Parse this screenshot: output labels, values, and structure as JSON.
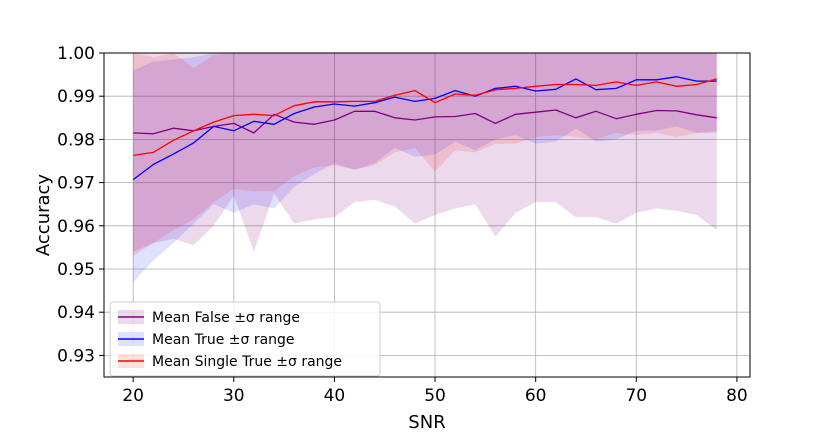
{
  "chart_data": {
    "type": "line",
    "xlabel": "SNR",
    "ylabel": "Accuracy",
    "xlim": [
      17.1,
      81.3
    ],
    "ylim": [
      0.925,
      1.0
    ],
    "xticks": [
      20,
      30,
      40,
      50,
      60,
      70,
      80
    ],
    "xtick_labels": [
      "20",
      "30",
      "40",
      "50",
      "60",
      "70",
      "80"
    ],
    "yticks": [
      0.93,
      0.94,
      0.95,
      0.96,
      0.97,
      0.98,
      0.99,
      1.0
    ],
    "ytick_labels": [
      "0.93",
      "0.94",
      "0.95",
      "0.96",
      "0.97",
      "0.98",
      "0.99",
      "1.00"
    ],
    "grid": true,
    "legend_position": "lower-left",
    "x": [
      20,
      22,
      24,
      26,
      28,
      30,
      32,
      34,
      36,
      38,
      40,
      42,
      44,
      46,
      48,
      50,
      52,
      54,
      56,
      58,
      60,
      62,
      64,
      66,
      68,
      70,
      72,
      74,
      76,
      78
    ],
    "series": [
      {
        "name": "Mean False ±σ range",
        "color": "#800080",
        "band_color": "#800080",
        "band_opacity": 0.15,
        "values": [
          0.9815,
          0.9813,
          0.9826,
          0.982,
          0.983,
          0.9837,
          0.9815,
          0.9858,
          0.984,
          0.9835,
          0.9845,
          0.9865,
          0.9865,
          0.985,
          0.9845,
          0.9852,
          0.9853,
          0.986,
          0.9837,
          0.9858,
          0.9863,
          0.9868,
          0.985,
          0.9865,
          0.9848,
          0.9858,
          0.9867,
          0.9866,
          0.9857,
          0.985
        ],
        "lower": [
          0.954,
          0.956,
          0.957,
          0.9555,
          0.96,
          0.967,
          0.954,
          0.9675,
          0.9605,
          0.9615,
          0.962,
          0.9655,
          0.966,
          0.9645,
          0.9605,
          0.9625,
          0.964,
          0.965,
          0.9575,
          0.963,
          0.9655,
          0.9655,
          0.962,
          0.962,
          0.9605,
          0.963,
          0.964,
          0.9635,
          0.9625,
          0.959
        ],
        "upper": [
          1.0,
          1.0,
          1.0,
          1.0,
          1.0,
          1.0,
          1.0,
          1.0,
          1.0,
          1.0,
          1.0,
          1.0,
          1.0,
          1.0,
          1.0,
          1.0,
          1.0,
          1.0,
          1.0,
          1.0,
          1.0,
          1.0,
          1.0,
          1.0,
          1.0,
          1.0,
          1.0,
          1.0,
          1.0,
          1.0
        ]
      },
      {
        "name": "Mean True ±σ range",
        "color": "#0000ff",
        "band_color": "#0000ff",
        "band_opacity": 0.12,
        "values": [
          0.9707,
          0.9742,
          0.9766,
          0.9792,
          0.983,
          0.982,
          0.9842,
          0.9835,
          0.986,
          0.9875,
          0.9882,
          0.9877,
          0.9885,
          0.9898,
          0.9888,
          0.9895,
          0.9913,
          0.99,
          0.9918,
          0.9923,
          0.9912,
          0.9916,
          0.994,
          0.9915,
          0.9918,
          0.9938,
          0.9938,
          0.9945,
          0.9935,
          0.9935
        ],
        "lower": [
          0.947,
          0.952,
          0.956,
          0.9605,
          0.965,
          0.963,
          0.965,
          0.964,
          0.969,
          0.972,
          0.9745,
          0.973,
          0.9745,
          0.978,
          0.976,
          0.9765,
          0.9795,
          0.9775,
          0.98,
          0.981,
          0.979,
          0.9795,
          0.9825,
          0.9795,
          0.98,
          0.982,
          0.982,
          0.983,
          0.9815,
          0.9815
        ],
        "upper": [
          0.996,
          0.998,
          0.9985,
          0.999,
          1.0,
          1.0,
          1.0,
          1.0,
          1.0,
          1.0,
          1.0,
          1.0,
          1.0,
          1.0,
          1.0,
          1.0,
          1.0,
          1.0,
          1.0,
          1.0,
          1.0,
          1.0,
          1.0,
          1.0,
          1.0,
          1.0,
          1.0,
          1.0,
          1.0,
          1.0
        ]
      },
      {
        "name": "Mean Single True ±σ range",
        "color": "#ff0000",
        "band_color": "#ff0000",
        "band_opacity": 0.12,
        "values": [
          0.9763,
          0.977,
          0.9798,
          0.982,
          0.984,
          0.9855,
          0.9858,
          0.9855,
          0.9878,
          0.9887,
          0.9887,
          0.9888,
          0.9888,
          0.9902,
          0.9913,
          0.9885,
          0.9905,
          0.9902,
          0.9915,
          0.9918,
          0.9923,
          0.9927,
          0.9927,
          0.9925,
          0.9933,
          0.9925,
          0.9933,
          0.9923,
          0.9927,
          0.994
        ],
        "lower": [
          0.953,
          0.956,
          0.959,
          0.9615,
          0.9655,
          0.9685,
          0.968,
          0.968,
          0.9715,
          0.9735,
          0.974,
          0.973,
          0.974,
          0.977,
          0.978,
          0.9725,
          0.9775,
          0.977,
          0.979,
          0.979,
          0.9805,
          0.981,
          0.9805,
          0.98,
          0.9815,
          0.981,
          0.9815,
          0.9805,
          0.9815,
          0.982
        ],
        "upper": [
          1.0,
          0.999,
          1.0,
          0.9965,
          0.9995,
          1.0,
          1.0,
          1.0,
          1.0,
          1.0,
          1.0,
          1.0,
          1.0,
          1.0,
          1.0,
          1.0,
          1.0,
          1.0,
          1.0,
          1.0,
          1.0,
          1.0,
          1.0,
          1.0,
          1.0,
          1.0,
          1.0,
          1.0,
          1.0,
          1.0
        ]
      }
    ]
  }
}
